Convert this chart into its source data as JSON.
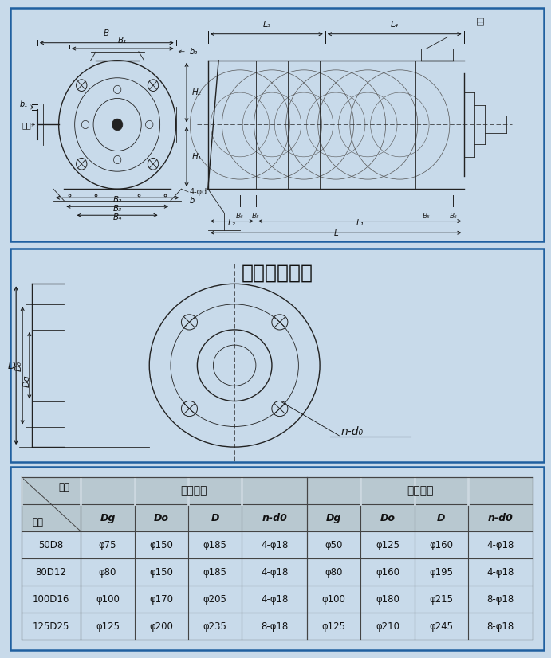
{
  "bg_color": "#c8daea",
  "border_color": "#2060a0",
  "title_flange": "吸入吐出法兰",
  "sec1_bg": "#ccd8e0",
  "sec2_bg": "#ccd8e0",
  "sec3_bg": "#ccd8e0",
  "table": {
    "rows": [
      [
        "50D8",
        "φ75",
        "φ150",
        "φ185",
        "4-φ18",
        "φ50",
        "φ125",
        "φ160",
        "4-φ18"
      ],
      [
        "80D12",
        "φ80",
        "φ150",
        "φ185",
        "4-φ18",
        "φ80",
        "φ160",
        "φ195",
        "4-φ18"
      ],
      [
        "100D16",
        "φ100",
        "φ170",
        "φ205",
        "4-φ18",
        "φ100",
        "φ180",
        "φ215",
        "8-φ18"
      ],
      [
        "125D25",
        "φ125",
        "φ200",
        "φ235",
        "8-φ18",
        "φ125",
        "φ210",
        "φ245",
        "8-φ18"
      ]
    ]
  }
}
